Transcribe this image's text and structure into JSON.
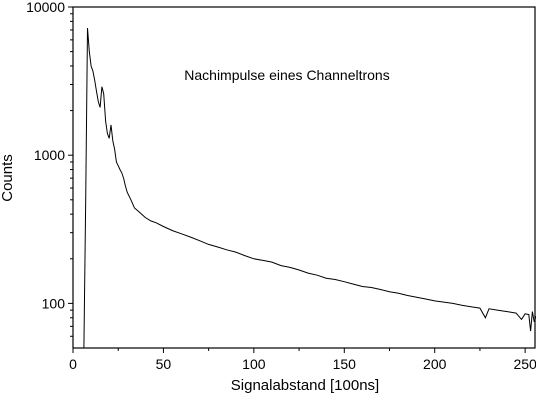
{
  "chart_data": {
    "type": "line",
    "title": "",
    "annotation": "Nachimpulse eines Channeltrons",
    "xlabel": "Signalabstand [100ns]",
    "ylabel": "Counts",
    "xlim": [
      0,
      256
    ],
    "ylim": [
      50,
      10000
    ],
    "yscale": "log",
    "grid": false,
    "legend": "none",
    "line_color": "#000000",
    "x_ticks": [
      0,
      50,
      100,
      150,
      200,
      250
    ],
    "y_ticks": [
      100,
      1000,
      10000
    ],
    "series": [
      {
        "x": [
          6,
          7,
          8,
          9,
          10,
          11,
          12,
          13,
          14,
          15,
          16,
          17,
          18,
          19,
          20,
          21,
          22,
          23,
          24,
          25,
          26,
          27,
          28,
          29,
          30,
          32,
          34,
          36,
          38,
          40,
          43,
          46,
          50,
          55,
          60,
          65,
          70,
          75,
          80,
          85,
          90,
          95,
          100,
          105,
          110,
          115,
          120,
          125,
          130,
          135,
          140,
          145,
          150,
          155,
          160,
          165,
          170,
          175,
          180,
          185,
          190,
          195,
          200,
          205,
          210,
          215,
          220,
          225,
          228,
          230,
          235,
          240,
          245,
          248,
          250,
          252,
          253,
          254,
          255,
          256
        ],
        "values": [
          50,
          500,
          7200,
          5000,
          4000,
          3700,
          3200,
          2700,
          2300,
          2100,
          2900,
          2600,
          1700,
          1400,
          1300,
          1600,
          1250,
          1100,
          900,
          850,
          800,
          760,
          700,
          620,
          560,
          500,
          440,
          420,
          400,
          380,
          360,
          350,
          330,
          310,
          295,
          280,
          265,
          250,
          240,
          230,
          222,
          210,
          200,
          195,
          190,
          180,
          175,
          168,
          160,
          155,
          148,
          145,
          140,
          135,
          130,
          128,
          124,
          120,
          117,
          113,
          110,
          107,
          104,
          102,
          100,
          97,
          95,
          93,
          80,
          92,
          90,
          88,
          86,
          78,
          85,
          84,
          65,
          88,
          75,
          82
        ]
      }
    ]
  }
}
